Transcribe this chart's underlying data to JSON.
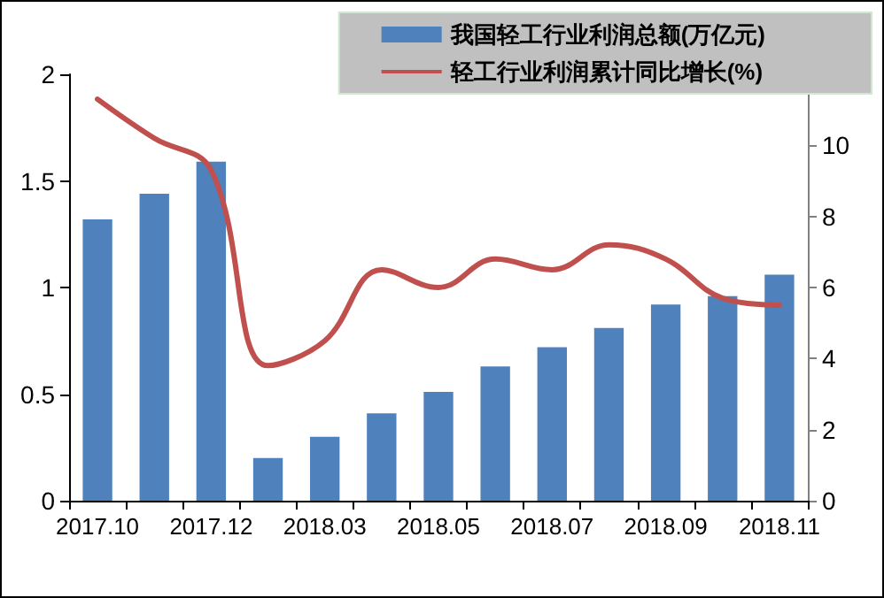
{
  "chart_data": {
    "type": "bar",
    "categories": [
      "2017.10",
      null,
      "2017.12",
      null,
      "2018.03",
      null,
      "2018.05",
      null,
      "2018.07",
      null,
      "2018.09",
      null,
      "2018.11"
    ],
    "series": [
      {
        "name": "我国轻工行业利润总额(万亿元)",
        "color": "#4f81bd",
        "values": [
          1.32,
          1.44,
          1.59,
          0.2,
          0.3,
          0.41,
          0.51,
          0.63,
          0.72,
          0.81,
          0.92,
          0.96,
          1.06
        ]
      },
      {
        "name": "轻工行业利润累计同比增长(%)",
        "type": "line",
        "axis": "y2",
        "color": "#c0504d",
        "values": [
          11.3,
          10.2,
          9.3,
          3.8,
          4.5,
          6.5,
          6.0,
          6.8,
          6.5,
          7.2,
          6.8,
          5.7,
          5.5
        ]
      }
    ],
    "ylim": [
      0,
      2
    ],
    "yticks": [
      0,
      0.5,
      1,
      1.5,
      2
    ],
    "y2lim": [
      0,
      12
    ],
    "y2ticks": [
      0,
      2,
      4,
      6,
      8,
      10
    ],
    "grid": false,
    "legend": "top right",
    "marker": "none",
    "line_style": "solid"
  }
}
